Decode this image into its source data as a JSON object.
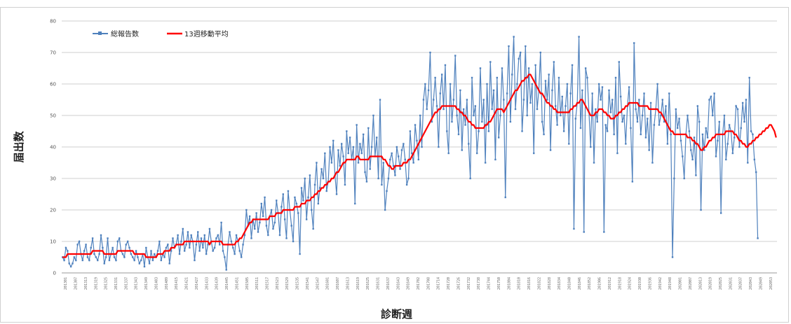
{
  "chart_data": {
    "type": "line",
    "xlabel": "診断週",
    "ylabel": "届出数",
    "ylim": [
      0,
      80
    ],
    "yticks": [
      0,
      10,
      20,
      30,
      40,
      50,
      60,
      70,
      80
    ],
    "grid": true,
    "legend_position": "top-left",
    "x_start_label": "201301",
    "series": [
      {
        "name": "総報告数",
        "color": "#4f81bd",
        "values": []
      },
      {
        "name": "13週移動平均",
        "color": "#ff0000",
        "values": []
      }
    ],
    "x_tick_labels": [
      "201301",
      "201307",
      "201313",
      "201319",
      "201325",
      "201331",
      "201337",
      "201343",
      "201349",
      "201403",
      "201409",
      "201415",
      "201421",
      "201427",
      "201433",
      "201439",
      "201445",
      "201451",
      "201505",
      "201511",
      "201517",
      "201523",
      "201529",
      "201535",
      "201541",
      "201547",
      "201601",
      "201607",
      "201613",
      "201619",
      "201625",
      "201631",
      "201637",
      "201643",
      "201649",
      "201702",
      "201708",
      "201714",
      "201720",
      "201726",
      "201732",
      "201738",
      "201744",
      "201750",
      "201804",
      "201810",
      "201816",
      "201822",
      "201828",
      "201834",
      "201840",
      "201846",
      "201852",
      "201906",
      "201912",
      "201918",
      "201924",
      "201930",
      "201936",
      "201942",
      "201948",
      "202001",
      "202007",
      "202013",
      "202019",
      "202025",
      "202031",
      "202037",
      "202043",
      "202049",
      "202053"
    ],
    "raw_total": [
      5,
      4,
      8,
      7,
      3,
      2,
      3,
      5,
      4,
      9,
      10,
      6,
      4,
      7,
      9,
      5,
      4,
      8,
      11,
      6,
      5,
      4,
      6,
      12,
      8,
      3,
      5,
      11,
      4,
      6,
      8,
      5,
      4,
      10,
      11,
      7,
      6,
      5,
      9,
      10,
      8,
      6,
      5,
      4,
      7,
      5,
      3,
      4,
      6,
      2,
      8,
      5,
      3,
      7,
      4,
      6,
      5,
      7,
      10,
      4,
      6,
      5,
      8,
      9,
      3,
      7,
      11,
      8,
      9,
      12,
      6,
      10,
      14,
      7,
      9,
      13,
      8,
      12,
      10,
      4,
      9,
      13,
      7,
      11,
      8,
      12,
      6,
      9,
      14,
      10,
      7,
      8,
      11,
      12,
      9,
      16,
      7,
      5,
      1,
      9,
      13,
      10,
      8,
      6,
      12,
      10,
      7,
      5,
      9,
      12,
      20,
      15,
      18,
      11,
      17,
      14,
      19,
      13,
      16,
      22,
      18,
      24,
      15,
      12,
      18,
      20,
      14,
      16,
      23,
      19,
      12,
      21,
      25,
      17,
      11,
      26,
      20,
      15,
      10,
      24,
      22,
      19,
      6,
      27,
      23,
      30,
      17,
      24,
      31,
      20,
      14,
      28,
      35,
      22,
      27,
      33,
      30,
      38,
      26,
      29,
      40,
      35,
      42,
      31,
      25,
      39,
      34,
      41,
      37,
      28,
      45,
      38,
      43,
      36,
      40,
      22,
      47,
      35,
      41,
      38,
      44,
      32,
      29,
      46,
      33,
      40,
      50,
      37,
      43,
      30,
      55,
      28,
      35,
      20,
      26,
      30,
      36,
      38,
      34,
      31,
      40,
      37,
      33,
      39,
      41,
      36,
      28,
      30,
      45,
      38,
      35,
      47,
      42,
      36,
      50,
      40,
      55,
      60,
      52,
      58,
      70,
      48,
      55,
      62,
      53,
      40,
      57,
      63,
      52,
      66,
      45,
      38,
      60,
      48,
      55,
      69,
      50,
      44,
      58,
      39,
      52,
      47,
      55,
      41,
      30,
      62,
      50,
      53,
      38,
      45,
      65,
      48,
      55,
      35,
      60,
      45,
      67,
      52,
      58,
      36,
      62,
      43,
      50,
      65,
      55,
      24,
      57,
      72,
      48,
      63,
      75,
      52,
      60,
      68,
      70,
      45,
      55,
      72,
      50,
      65,
      54,
      60,
      38,
      66,
      52,
      58,
      70,
      48,
      44,
      61,
      55,
      63,
      39,
      58,
      67,
      53,
      47,
      62,
      50,
      56,
      45,
      53,
      60,
      41,
      57,
      66,
      14,
      49,
      54,
      75,
      46,
      58,
      13,
      65,
      62,
      51,
      40,
      57,
      35,
      52,
      48,
      60,
      55,
      59,
      13,
      47,
      45,
      58,
      51,
      55,
      44,
      62,
      38,
      67,
      56,
      48,
      50,
      41,
      53,
      59,
      46,
      29,
      73,
      52,
      48,
      55,
      44,
      50,
      57,
      43,
      49,
      39,
      54,
      35,
      47,
      52,
      60,
      47,
      50,
      55,
      48,
      53,
      41,
      57,
      44,
      5,
      30,
      52,
      46,
      49,
      42,
      37,
      30,
      44,
      50,
      45,
      39,
      36,
      43,
      31,
      53,
      48,
      20,
      44,
      39,
      46,
      43,
      55,
      56,
      50,
      57,
      37,
      42,
      48,
      19,
      44,
      50,
      36,
      41,
      47,
      45,
      38,
      43,
      53,
      52,
      40,
      46,
      54,
      48,
      55,
      35,
      62,
      45,
      44,
      36,
      32,
      11
    ],
    "raw_ma": [
      5,
      5,
      5,
      6,
      6,
      6,
      6,
      6,
      6,
      6,
      6,
      6,
      6,
      6,
      6,
      6,
      6,
      6,
      7,
      7,
      7,
      7,
      7,
      7,
      7,
      6,
      6,
      6,
      6,
      6,
      6,
      6,
      6,
      7,
      7,
      7,
      7,
      7,
      7,
      7,
      7,
      7,
      7,
      6,
      6,
      6,
      6,
      6,
      6,
      6,
      5,
      5,
      5,
      5,
      5,
      5,
      5,
      6,
      6,
      6,
      6,
      7,
      7,
      7,
      7,
      8,
      8,
      8,
      9,
      9,
      9,
      9,
      9,
      10,
      10,
      10,
      10,
      10,
      10,
      10,
      10,
      10,
      10,
      10,
      10,
      10,
      10,
      10,
      9,
      10,
      10,
      10,
      10,
      10,
      10,
      10,
      9,
      9,
      9,
      9,
      9,
      9,
      9,
      9,
      10,
      10,
      11,
      11,
      12,
      13,
      14,
      15,
      16,
      16,
      17,
      17,
      17,
      17,
      17,
      17,
      17,
      17,
      17,
      17,
      18,
      18,
      18,
      18,
      19,
      19,
      19,
      19,
      20,
      20,
      20,
      20,
      20,
      20,
      20,
      21,
      21,
      21,
      21,
      22,
      22,
      22,
      23,
      23,
      23,
      24,
      24,
      25,
      25,
      26,
      26,
      27,
      27,
      28,
      28,
      29,
      29,
      30,
      30,
      31,
      32,
      32,
      33,
      34,
      35,
      35,
      36,
      36,
      36,
      36,
      36,
      36,
      37,
      37,
      36,
      36,
      36,
      36,
      36,
      36,
      37,
      37,
      37,
      37,
      37,
      37,
      37,
      37,
      36,
      36,
      35,
      34,
      34,
      33,
      33,
      34,
      34,
      34,
      34,
      34,
      35,
      35,
      35,
      36,
      36,
      37,
      38,
      39,
      40,
      41,
      42,
      43,
      44,
      45,
      46,
      47,
      48,
      49,
      50,
      51,
      51,
      52,
      52,
      53,
      53,
      53,
      53,
      53,
      53,
      53,
      53,
      53,
      52,
      52,
      51,
      51,
      50,
      50,
      49,
      48,
      48,
      47,
      47,
      46,
      46,
      46,
      46,
      46,
      46,
      47,
      47,
      48,
      48,
      49,
      50,
      51,
      52,
      52,
      52,
      52,
      51,
      52,
      53,
      54,
      55,
      56,
      57,
      58,
      58,
      59,
      60,
      61,
      61,
      62,
      62,
      63,
      63,
      62,
      61,
      60,
      59,
      58,
      57,
      57,
      56,
      55,
      54,
      54,
      53,
      53,
      52,
      52,
      51,
      51,
      51,
      51,
      51,
      51,
      51,
      51,
      52,
      52,
      53,
      53,
      54,
      54,
      55,
      55,
      54,
      53,
      52,
      51,
      50,
      50,
      50,
      51,
      51,
      52,
      52,
      52,
      51,
      51,
      50,
      50,
      49,
      49,
      49,
      50,
      50,
      51,
      51,
      52,
      52,
      53,
      53,
      54,
      54,
      54,
      54,
      54,
      54,
      53,
      53,
      53,
      53,
      53,
      53,
      52,
      52,
      52,
      52,
      52,
      52,
      51,
      51,
      50,
      49,
      48,
      47,
      46,
      45,
      45,
      44,
      44,
      44,
      44,
      44,
      44,
      44,
      44,
      43,
      43,
      43,
      42,
      42,
      41,
      41,
      40,
      39,
      39,
      40,
      40,
      41,
      42,
      42,
      43,
      43,
      44,
      44,
      44,
      44,
      44,
      44,
      45,
      45,
      45,
      45,
      45,
      44,
      44,
      43,
      42,
      42,
      41,
      41,
      40,
      40,
      41,
      41,
      42,
      42,
      43,
      43,
      44,
      44,
      45,
      45,
      46,
      46,
      47,
      47,
      46,
      45,
      43
    ]
  },
  "legend": {
    "total_label": "総報告数",
    "ma_label": "13週移動平均"
  }
}
